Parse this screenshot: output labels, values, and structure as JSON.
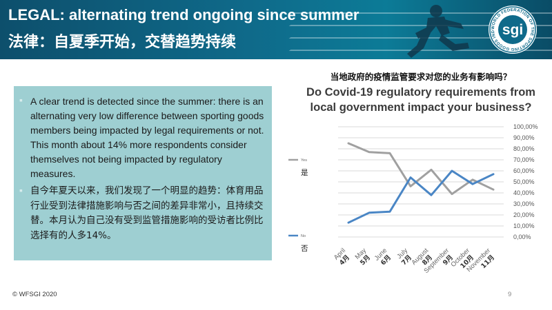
{
  "header": {
    "title_en": "LEGAL: alternating trend ongoing since summer",
    "title_zh": "法律：自夏季开始，交替趋势持续",
    "logo_text": "sgi",
    "logo_ring_text": "WORLD FEDERATION OF THE SPORTING GOODS INDUSTRY"
  },
  "textbox": {
    "bullet_en": "A clear trend is detected since the summer: there is an alternating very low difference between sporting goods members being impacted by legal requirements or not. This month about 14% more respondents consider themselves not being impacted by regulatory measures.",
    "bullet_zh": "自今年夏天以来，我们发现了一个明显的趋势：体育用品行业受到法律措施影响与否之间的差异非常小，且持续交替。本月认为自己没有受到监管措施影响的受访者比例比选择有的人多14%。"
  },
  "colors": {
    "yes": "#a0a0a0",
    "no": "#4a86c5",
    "banner": "#0f6a8a",
    "box": "#9ecfd2"
  },
  "chart_data": {
    "type": "line",
    "title_zh": "当地政府的疫情监管要求对您的业务有影响吗？",
    "title_en": "Do Covid-19 regulatory requirements from local government impact your business?",
    "categories": [
      "April",
      "May",
      "June",
      "July",
      "August",
      "September",
      "October",
      "November"
    ],
    "categories_zh": [
      "4月",
      "5月",
      "6月",
      "7月",
      "8月",
      "9月",
      "10月",
      "11月"
    ],
    "y_ticks": [
      "0,00%",
      "10,00%",
      "20,00%",
      "30,00%",
      "40,00%",
      "50,00%",
      "60,00%",
      "70,00%",
      "80,00%",
      "90,00%",
      "100,00%"
    ],
    "ylim": [
      0,
      100
    ],
    "grid": true,
    "series": [
      {
        "name": "Yes",
        "name_zh": "是",
        "color": "#a0a0a0",
        "values": [
          85,
          77,
          76,
          46,
          61,
          39,
          52,
          43
        ]
      },
      {
        "name": "No",
        "name_zh": "否",
        "color": "#4a86c5",
        "values": [
          13,
          22,
          23,
          54,
          38,
          60,
          48,
          57
        ]
      }
    ]
  },
  "footer": {
    "copyright": "© WFSGI 2020",
    "page_number": "9"
  }
}
